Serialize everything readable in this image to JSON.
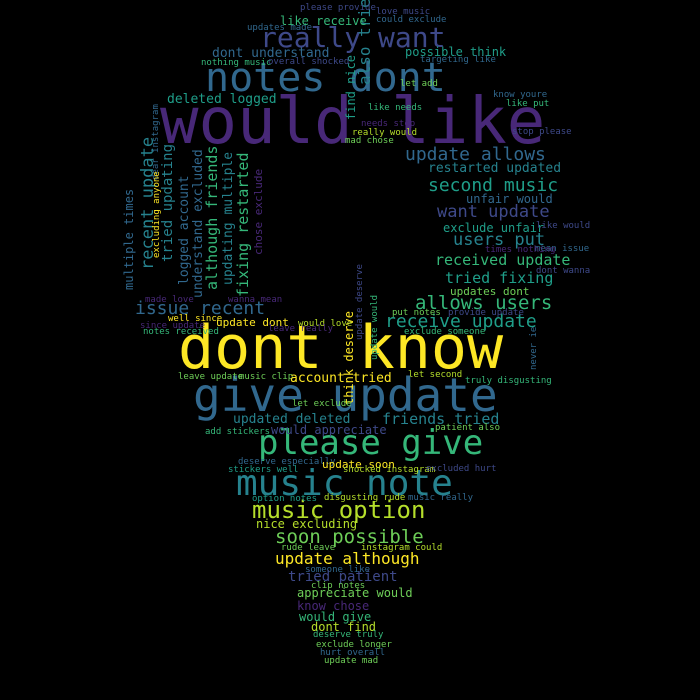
{
  "palette": {
    "yellow": "#fde725",
    "lime": "#b5de2b",
    "green": "#6ece58",
    "teal_green": "#35b779",
    "teal": "#1f9e89",
    "blue_teal": "#26828e",
    "blue": "#31688e",
    "indigo": "#3e4989",
    "purple": "#482878",
    "dark_purple": "#440154"
  },
  "words": {
    "would_like": "would like",
    "dont_know": "dont know",
    "give_update": "give update",
    "notes_dont": "notes dont",
    "really_want": "really want",
    "please_give": "please give",
    "music_note": "music note",
    "music_option": "music option",
    "soon_possible": "soon possible",
    "update_although": "update although",
    "update_allows": "update allows",
    "second_music": "second music",
    "want_update": "want update",
    "users_put": "users put",
    "received_update": "received update",
    "tried_fixing": "tried fixing",
    "allows_users": "allows users",
    "receive_update": "receive update",
    "issue_recent": "issue recent",
    "recent_update": "recent update",
    "multiple_times": "multiple times",
    "tried_updating": "tried updating",
    "logged_account": "logged account",
    "understand_excluded": "understand excluded",
    "although_friends": "although friends",
    "updating_multiple": "updating multiple",
    "fixing_restarted": "fixing restarted",
    "chose_exclude": "chose exclude",
    "also_tried": "also tried",
    "find_nice": "find nice",
    "deleted_logged": "deleted logged",
    "dont_understand": "dont understand",
    "like_receive": "like receive",
    "possible_think": "possible think",
    "restarted_updated": "restarted updated",
    "unfair_would": "unfair would",
    "exclude_unfair": "exclude unfair",
    "updates_dont": "updates dont",
    "update_dont": "update dont",
    "account_tried": "account tried",
    "think_deserve": "think deserve",
    "updated_deleted": "updated deleted",
    "friends_tried": "friends tried",
    "would_appreciate": "would appreciate",
    "update_soon": "update soon",
    "nice_excluding": "nice excluding",
    "tried_patient": "tried patient",
    "appreciate_would": "appreciate would",
    "know_chose": "know chose",
    "would_give": "would give",
    "dont_find": "dont find",
    "deserve_truly": "deserve truly",
    "exclude_longer": "exclude longer",
    "hurt_overall": "hurt overall",
    "update_mad": "update mad",
    "please_provide": "please provide",
    "love_music": "love music",
    "updates_made": "updates made",
    "could_exclude": "could exclude",
    "nothing_music": "nothing music",
    "overall_shocked": "overall shocked",
    "targeting_like": "targeting like",
    "know_youre": "know youre",
    "like_put": "like put",
    "stop_please": "stop please",
    "really_would": "really would",
    "mad_chose": "mad chose",
    "let_add": "let add",
    "like_needs": "like needs",
    "needs_stop": "needs stop",
    "like_would": "like would",
    "dont_wanna": "dont wanna",
    "made_love": "made love",
    "wanna_mean": "wanna mean",
    "well_since": "well since",
    "would_love": "would love",
    "put_notes": "put notes",
    "provide_update": "provide update",
    "exclude_someone": "exclude someone",
    "notes_received": "notes received",
    "leave_update": "leave update",
    "music_clip": "music clip",
    "let_exclude": "let exclude",
    "truly_disgusting": "truly disgusting",
    "add_stickers": "add stickers",
    "patient_also": "patient also",
    "deserve_especially": "deserve especially",
    "stickers_well": "stickers well",
    "shocked_instagram": "shocked instagram",
    "excluded_hurt": "excluded hurt",
    "option_notes": "option notes",
    "disgusting_rude": "disgusting rude",
    "music_really": "music really",
    "rude_leave": "rude leave",
    "instagram_could": "instagram could",
    "someone_like": "someone like",
    "clip_notes": "clip notes",
    "times_nothing": "times nothing",
    "mean_issue": "mean issue",
    "dear_instagram": "dear instagram",
    "excluding_anyone": "excluding anyone",
    "update_deserve": "update deserve",
    "update_would": "update would",
    "never_ie": "never ie",
    "leave_really": "leave really",
    "since_update": "since update",
    "let_second": "let second"
  }
}
